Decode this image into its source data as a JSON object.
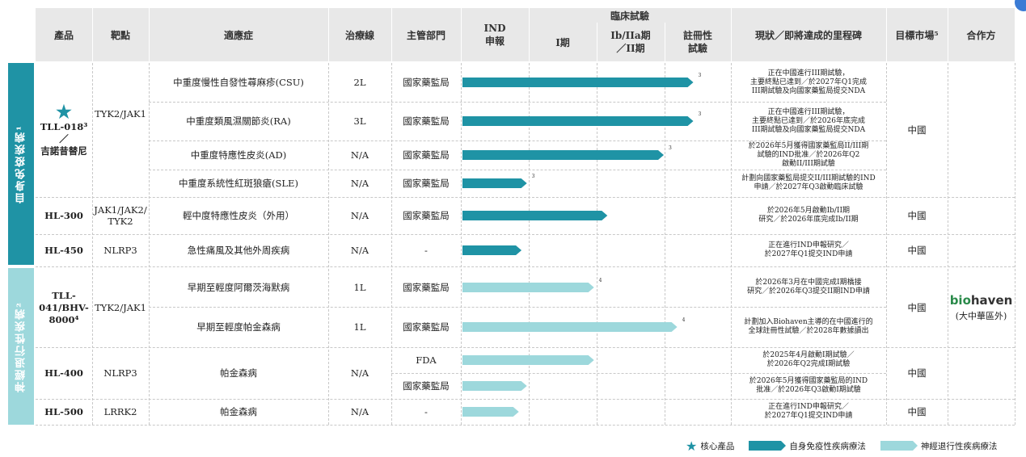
{
  "header": {
    "product": "產品",
    "target": "靶點",
    "indication": "適應症",
    "line": "治療線",
    "authority": "主管部門",
    "ind": [
      "IND",
      "申報"
    ],
    "clinical": "臨床試驗",
    "phase1": "I期",
    "phase1b": [
      "Ib/IIa期",
      "／II期"
    ],
    "registration": [
      "註冊性",
      "試驗"
    ],
    "status": "現狀／即將達成的里程碑",
    "market": "目標市場⁵",
    "partner": "合作方"
  },
  "groups": [
    {
      "label": "自身免疫疾病¹",
      "color": "#1f93a5"
    },
    {
      "label": "神經退行性疾病²",
      "color": "#9dd8dc"
    }
  ],
  "products": [
    {
      "name": "TLL-018³／",
      "name2": "吉諾昔替尼",
      "target": "TYK2/JAK1",
      "market": "中國",
      "core": true
    },
    {
      "name": "HL-300",
      "target": "JAK1/JAK2/",
      "target2": "TYK2",
      "market": "中國"
    },
    {
      "name": "HL-450",
      "target": "NLRP3",
      "market": "中國"
    },
    {
      "name": "TLL-",
      "name2": "041/BHV-",
      "name3": "8000⁴",
      "target": "TYK2/JAK1",
      "market": "中國"
    },
    {
      "name": "HL-400",
      "target": "NLRP3",
      "market": "中國"
    },
    {
      "name": "HL-500",
      "target": "LRRK2",
      "market": "中國"
    }
  ],
  "rows": [
    {
      "indication": "中重度慢性自發性蕁麻疹(CSU)",
      "line": "2L",
      "authority": "國家藥監局",
      "progress": 0.86,
      "therapy": "autoimmune",
      "note": "3",
      "status": [
        "正在中國進行III期試驗，",
        "主要終點已達到／於2027年Q1完成",
        "III期試驗及向國家藥監局提交NDA"
      ]
    },
    {
      "indication": "中重度類風濕關節炎(RA)",
      "line": "3L",
      "authority": "國家藥監局",
      "progress": 0.86,
      "therapy": "autoimmune",
      "note": "3",
      "status": [
        "正在中國進行III期試驗，",
        "主要終點已達到／於2026年底完成",
        "III期試驗及向國家藥監局提交NDA"
      ]
    },
    {
      "indication": "中重度特應性皮炎(AD)",
      "line": "N/A",
      "authority": "國家藥監局",
      "progress": 0.75,
      "therapy": "autoimmune",
      "note": "3",
      "status": [
        "於2026年5月獲得國家藥監局II/III期",
        "試驗的IND批准／於2026年Q2",
        "啟動II/III期試驗"
      ]
    },
    {
      "indication": "中重度系統性紅斑狼瘡(SLE)",
      "line": "N/A",
      "authority": "國家藥監局",
      "progress": 0.24,
      "therapy": "autoimmune",
      "note": "3",
      "status": [
        "計劃向國家藥監局提交II/III期試驗的IND",
        "申請／於2027年Q3啟動臨床試驗"
      ]
    },
    {
      "indication": "輕中度特應性皮炎（外用）",
      "line": "N/A",
      "authority": "國家藥監局",
      "progress": 0.54,
      "therapy": "autoimmune",
      "note": "",
      "status": [
        "於2026年5月啟動Ib/II期",
        "研究／於2026年底完成Ib/II期"
      ]
    },
    {
      "indication": "急性痛風及其他外周疾病",
      "line": "N/A",
      "authority": "-",
      "progress": 0.22,
      "therapy": "autoimmune",
      "note": "",
      "status": [
        "正在進行IND申報研究／",
        "於2027年Q1提交IND申請"
      ]
    },
    {
      "indication": "早期至輕度阿爾茨海默病",
      "line": "1L",
      "authority": "國家藥監局",
      "progress": 0.49,
      "therapy": "neuro",
      "note": "4",
      "status": [
        "於2026年3月在中國完成I期橋接",
        "研究／於2026年Q3提交II期IND申請"
      ]
    },
    {
      "indication": "早期至輕度帕金森病",
      "line": "1L",
      "authority": "國家藥監局",
      "progress": 0.8,
      "therapy": "neuro",
      "note": "4",
      "status": [
        "計劃加入Biohaven主導的在中國進行的",
        "全球註冊性試驗／於2028年數據讀出"
      ]
    },
    {
      "indication": "帕金森病",
      "line": "N/A",
      "authority": "FDA",
      "progress": 0.49,
      "therapy": "neuro",
      "note": "",
      "status": [
        "於2025年4月啟動I期試驗／",
        "於2026年Q2完成I期試驗"
      ]
    },
    {
      "indication": "",
      "line": "",
      "authority": "國家藥監局",
      "progress": 0.24,
      "therapy": "neuro",
      "note": "",
      "status": [
        "於2026年5月獲得國家藥監局的IND",
        "批准／於2026年Q3啟動I期試驗"
      ]
    },
    {
      "indication": "帕金森病",
      "line": "N/A",
      "authority": "-",
      "progress": 0.21,
      "therapy": "neuro",
      "note": "",
      "status": [
        "正在進行IND申報研究／",
        "於2027年Q1提交IND申請"
      ]
    }
  ],
  "partner": {
    "logo_pre": "bio",
    "logo_post": "haven",
    "region": "(大中華區外)"
  },
  "legend": {
    "core": "核心產品",
    "autoimmune": "自身免疫性疾病療法",
    "neuro": "神經退行性疾病療法"
  },
  "colors": {
    "dark": "#1f93a5",
    "light": "#9dd8dc",
    "star": "#1f93a5"
  }
}
